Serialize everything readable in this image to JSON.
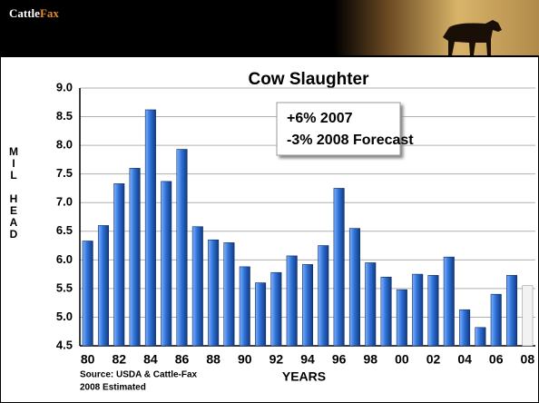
{
  "header": {
    "logo": [
      "Cattle",
      "Fax"
    ]
  },
  "chart_data": {
    "type": "bar",
    "title": "Cow Slaughter",
    "y_label": "MIL HEAD",
    "x_label": "YEARS",
    "annotations": [
      "+6% 2007",
      "-3% 2008 Forecast"
    ],
    "source": [
      "Source:  USDA & Cattle-Fax",
      "2008 Estimated"
    ],
    "categories": [
      "80",
      null,
      "82",
      null,
      "84",
      null,
      "86",
      null,
      "88",
      null,
      "90",
      null,
      "92",
      null,
      "94",
      null,
      "96",
      null,
      "98",
      null,
      "00",
      null,
      "02",
      null,
      "04",
      null,
      "06",
      null,
      "08"
    ],
    "values": [
      6.33,
      6.6,
      7.33,
      7.6,
      8.62,
      7.37,
      7.93,
      6.58,
      6.35,
      6.3,
      5.88,
      5.6,
      5.78,
      6.07,
      5.92,
      6.25,
      7.25,
      6.55,
      5.95,
      5.7,
      5.48,
      5.75,
      5.73,
      6.05,
      5.13,
      4.82,
      5.4,
      5.73,
      5.55
    ],
    "color": "#2f72d8",
    "estimate_color": "#f2f2f2",
    "ylim": [
      4.5,
      9.0
    ],
    "yticks": [
      4.5,
      {
        "value": 5,
        "label": "5.0"
      },
      5.5,
      {
        "value": 6,
        "label": "6.0"
      },
      6.5,
      {
        "value": 7,
        "label": "7.0"
      },
      7.5,
      {
        "value": 8,
        "label": "8.0"
      },
      8.5,
      {
        "value": 9,
        "label": "9.0"
      }
    ],
    "grid": true
  }
}
